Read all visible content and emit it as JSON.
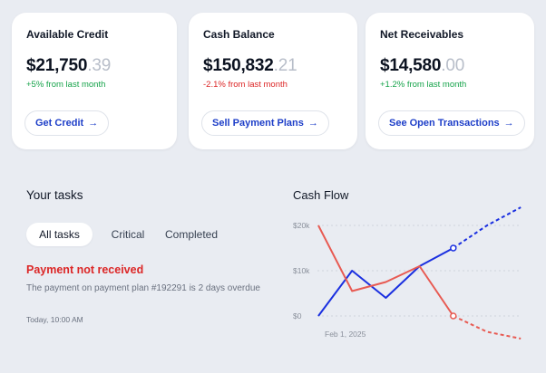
{
  "cards": [
    {
      "title": "Available Credit",
      "amount_main": "$21,750",
      "amount_cents": ".39",
      "change": "+5% from last month",
      "change_dir": "pos",
      "button": "Get Credit"
    },
    {
      "title": "Cash Balance",
      "amount_main": "$150,832",
      "amount_cents": ".21",
      "change": "-2.1% from last month",
      "change_dir": "neg",
      "button": "Sell Payment Plans"
    },
    {
      "title": "Net Receivables",
      "amount_main": "$14,580",
      "amount_cents": ".00",
      "change": "+1.2% from last month",
      "change_dir": "pos",
      "button": "See Open Transactions"
    }
  ],
  "tasks": {
    "title": "Your tasks",
    "tabs": [
      "All tasks",
      "Critical",
      "Completed"
    ],
    "active_tab": "All tasks",
    "item": {
      "title": "Payment not received",
      "description": "The payment on payment plan #192291 is 2 days overdue",
      "time": "Today, 10:00 AM"
    }
  },
  "cash_flow": {
    "title": "Cash Flow"
  },
  "chart_data": {
    "type": "line",
    "title": "Cash Flow",
    "y_ticks": [
      "$20k",
      "$10k",
      "$0"
    ],
    "ylim": [
      0,
      20000
    ],
    "x_label_shown": "Feb 1, 2025",
    "grid": true,
    "series": [
      {
        "color": "#1a2fe0",
        "actual": [
          0,
          10000,
          4000,
          11000,
          15000
        ],
        "projected": [
          15000,
          20000,
          24000
        ]
      },
      {
        "color": "#e85a52",
        "actual": [
          20000,
          5500,
          7500,
          11000,
          0
        ],
        "projected": [
          0,
          -3500,
          -5000
        ]
      }
    ],
    "x_points": [
      0,
      1,
      2,
      3,
      4,
      5,
      6
    ]
  },
  "colors": {
    "accent": "#1d3ec8",
    "positive": "#16a34a",
    "negative": "#dc2626",
    "background": "#e9ecf2"
  }
}
